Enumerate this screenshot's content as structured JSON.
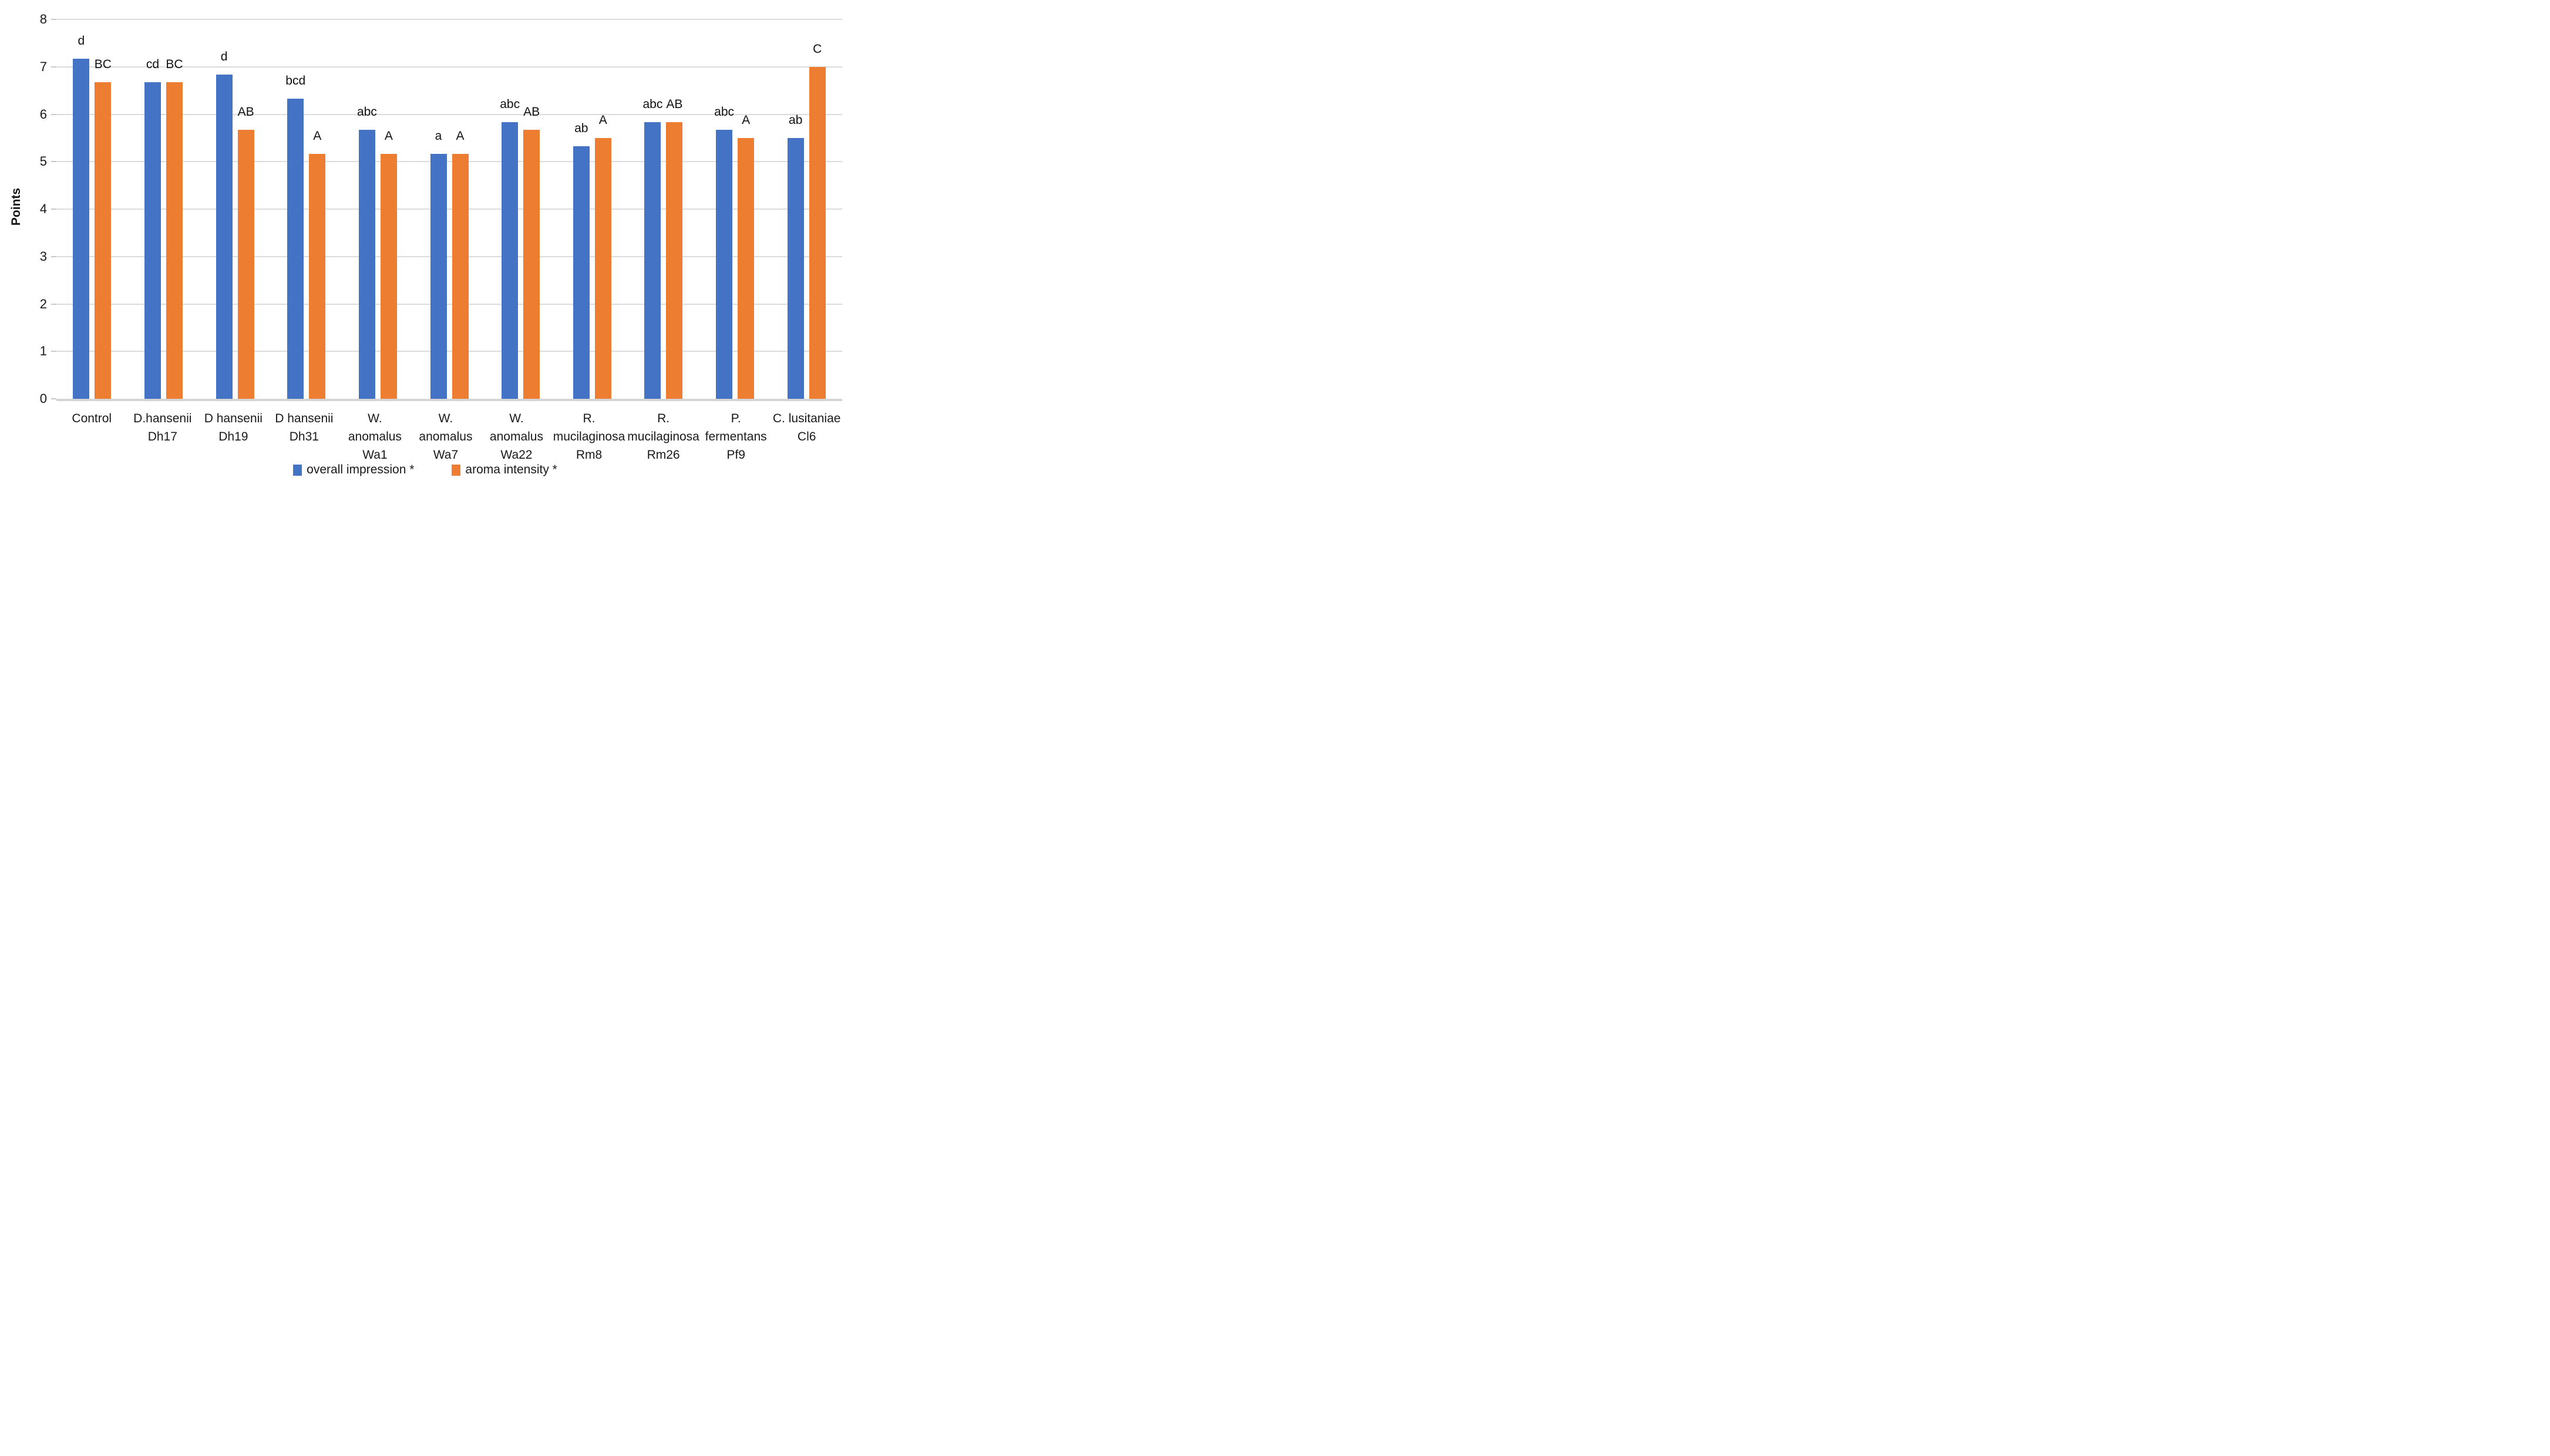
{
  "chart_data": {
    "type": "bar",
    "title": "",
    "xlabel": "",
    "ylabel": "Points",
    "ylim": [
      0,
      8
    ],
    "yticks": [
      0,
      1,
      2,
      3,
      4,
      5,
      6,
      7,
      8
    ],
    "grid": true,
    "legend_position": "bottom",
    "categories": [
      {
        "lines": [
          "Control"
        ]
      },
      {
        "lines": [
          "D.hansenii",
          "Dh17"
        ]
      },
      {
        "lines": [
          "D hansenii",
          "Dh19"
        ]
      },
      {
        "lines": [
          "D hansenii",
          "Dh31"
        ]
      },
      {
        "lines": [
          "W. anomalus",
          "Wa1"
        ]
      },
      {
        "lines": [
          "W. anomalus",
          "Wa7"
        ]
      },
      {
        "lines": [
          "W. anomalus",
          "Wa22"
        ]
      },
      {
        "lines": [
          "R.",
          "mucilaginosa",
          "Rm8"
        ]
      },
      {
        "lines": [
          "R.",
          "mucilaginosa",
          "Rm26"
        ]
      },
      {
        "lines": [
          "P.",
          "fermentans",
          "Pf9"
        ]
      },
      {
        "lines": [
          "C. lusitaniae",
          "Cl6"
        ]
      }
    ],
    "series": [
      {
        "name": "overall impression *",
        "color": "#4472C4",
        "values": [
          7.17,
          6.67,
          6.83,
          6.33,
          5.67,
          5.17,
          5.83,
          5.33,
          5.83,
          5.67,
          5.5
        ],
        "point_labels": [
          "d",
          "cd",
          "d",
          "bcd",
          "abc",
          "a",
          "abc",
          "ab",
          "abc",
          "abc",
          "ab"
        ]
      },
      {
        "name": "aroma intensity *",
        "color": "#ED7D31",
        "values": [
          6.67,
          6.67,
          5.67,
          5.17,
          5.17,
          5.17,
          5.67,
          5.5,
          5.83,
          5.5,
          7.0
        ],
        "point_labels": [
          "BC",
          "BC",
          "AB",
          "A",
          "A",
          "A",
          "AB",
          "A",
          "AB",
          "A",
          "C"
        ]
      }
    ],
    "colors": {
      "gridline": "#DCDCDC",
      "axis_line": "#D4D4D4",
      "text": "#1A1A1A"
    }
  }
}
